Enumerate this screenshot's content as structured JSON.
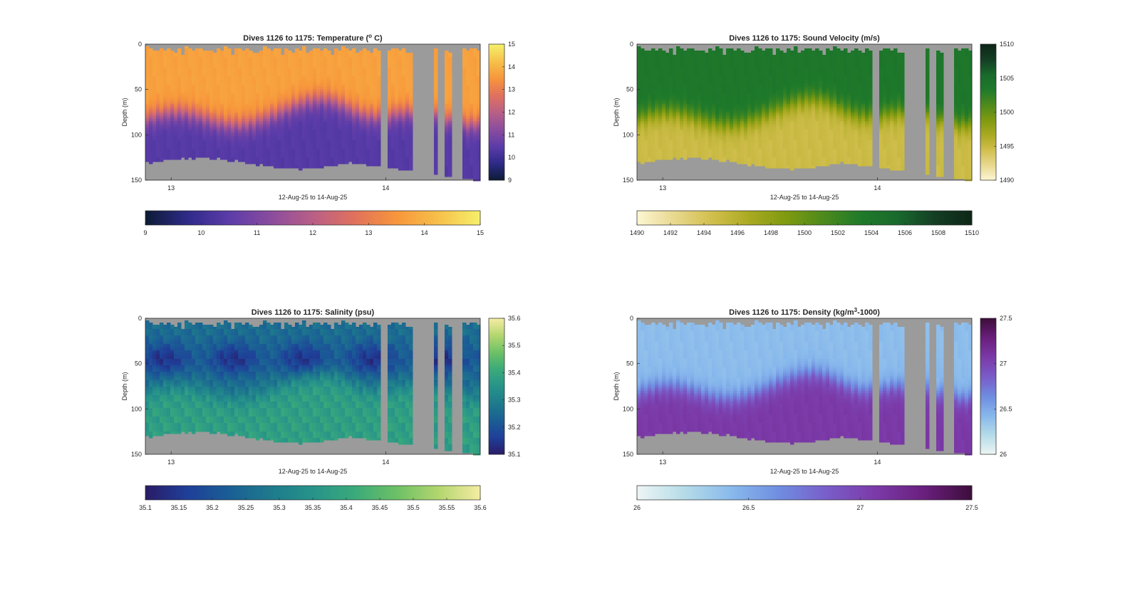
{
  "figure": {
    "background": "#ffffff",
    "nodata_color": "#9b9b9b"
  },
  "chart_data": [
    {
      "type": "heatmap",
      "title": "Dives 1126 to 1175: Temperature (",
      "title_sup": "o",
      "title_after": " C)",
      "xlabel": "12-Aug-25 to 14-Aug-25",
      "ylabel": "Depth (m)",
      "ylim": [
        0,
        150
      ],
      "y_reversed": true,
      "yticks": [
        "0",
        "50",
        "100",
        "150"
      ],
      "xticks": [
        "13",
        "14"
      ],
      "x_range_days": [
        12.88,
        14.44
      ],
      "variable": "temperature",
      "clim": [
        9,
        15
      ],
      "colormap": [
        "#0b1b33",
        "#2e2a88",
        "#5b3ca9",
        "#8a4c9e",
        "#b95f86",
        "#e0715d",
        "#f7963b",
        "#f6c04a",
        "#f5f06a"
      ],
      "vertical_colorbar_ticks": [
        "9",
        "10",
        "11",
        "12",
        "13",
        "14",
        "15"
      ],
      "horizontal_colorbar_ticks": [
        "9",
        "10",
        "11",
        "12",
        "13",
        "14",
        "15"
      ],
      "surface_value": 13.7,
      "deep_value": 10.4,
      "thermocline_depth_m": [
        80,
        88
      ]
    },
    {
      "type": "heatmap",
      "title": "Dives 1126 to 1175: Sound Velocity (m/s)",
      "title_sup": "",
      "title_after": "",
      "xlabel": "12-Aug-25 to 14-Aug-25",
      "ylabel": "Depth (m)",
      "ylim": [
        0,
        150
      ],
      "y_reversed": true,
      "yticks": [
        "0",
        "50",
        "100",
        "150"
      ],
      "xticks": [
        "13",
        "14"
      ],
      "x_range_days": [
        12.88,
        14.44
      ],
      "variable": "sound_velocity",
      "clim": [
        1490,
        1510
      ],
      "colormap": [
        "#fdf6d3",
        "#e8d88f",
        "#d2bf4e",
        "#aaaa22",
        "#7f9a10",
        "#4e8a1c",
        "#1f7a2a",
        "#196a2c",
        "#143e24",
        "#0e2618"
      ],
      "vertical_colorbar_ticks": [
        "1490",
        "1495",
        "1500",
        "1505",
        "1510"
      ],
      "horizontal_colorbar_ticks": [
        "1490",
        "1492",
        "1494",
        "1496",
        "1498",
        "1500",
        "1502",
        "1504",
        "1506",
        "1508",
        "1510"
      ],
      "surface_value": 1503.8,
      "deep_value": 1494.8,
      "thermocline_depth_m": [
        80,
        88
      ]
    },
    {
      "type": "heatmap",
      "title": "Dives 1126 to 1175: Salinity (psu)",
      "title_sup": "",
      "title_after": "",
      "xlabel": "12-Aug-25 to 14-Aug-25",
      "ylabel": "Depth (m)",
      "ylim": [
        0,
        150
      ],
      "y_reversed": true,
      "yticks": [
        "0",
        "50",
        "100",
        "150"
      ],
      "xticks": [
        "13",
        "14"
      ],
      "x_range_days": [
        12.88,
        14.44
      ],
      "variable": "salinity",
      "clim": [
        35.1,
        35.6
      ],
      "colormap": [
        "#2a1b66",
        "#1f3f99",
        "#1a5e95",
        "#1e7a8c",
        "#26938a",
        "#3aaa7a",
        "#6cc066",
        "#b2d66e",
        "#f5eca3"
      ],
      "vertical_colorbar_ticks": [
        "35.1",
        "35.2",
        "35.3",
        "35.4",
        "35.5",
        "35.6"
      ],
      "horizontal_colorbar_ticks": [
        "35.1",
        "35.15",
        "35.2",
        "35.25",
        "35.3",
        "35.35",
        "35.4",
        "35.45",
        "35.5",
        "35.55",
        "35.6"
      ],
      "surface_value": 35.26,
      "deep_value": 35.38,
      "thermocline_depth_m": [
        80,
        88
      ]
    },
    {
      "type": "heatmap",
      "title": "Dives 1126 to 1175: Density (kg/m",
      "title_sup": "3",
      "title_after": "-1000)",
      "xlabel": "12-Aug-25 to 14-Aug-25",
      "ylabel": "Depth (m)",
      "ylim": [
        0,
        150
      ],
      "y_reversed": true,
      "yticks": [
        "0",
        "50",
        "100",
        "150"
      ],
      "xticks": [
        "13",
        "14"
      ],
      "x_range_days": [
        12.88,
        14.44
      ],
      "variable": "density",
      "clim": [
        26,
        27.5
      ],
      "colormap": [
        "#eef5f5",
        "#b5dbe8",
        "#87b8ec",
        "#6f8ce0",
        "#7a5cc8",
        "#7b3aa8",
        "#6a1f7d",
        "#3d0e3b"
      ],
      "vertical_colorbar_ticks": [
        "26",
        "26.5",
        "27",
        "27.5"
      ],
      "horizontal_colorbar_ticks": [
        "26",
        "26.5",
        "27",
        "27.5"
      ],
      "surface_value": 26.4,
      "deep_value": 27.08,
      "thermocline_depth_m": [
        80,
        88
      ]
    }
  ]
}
